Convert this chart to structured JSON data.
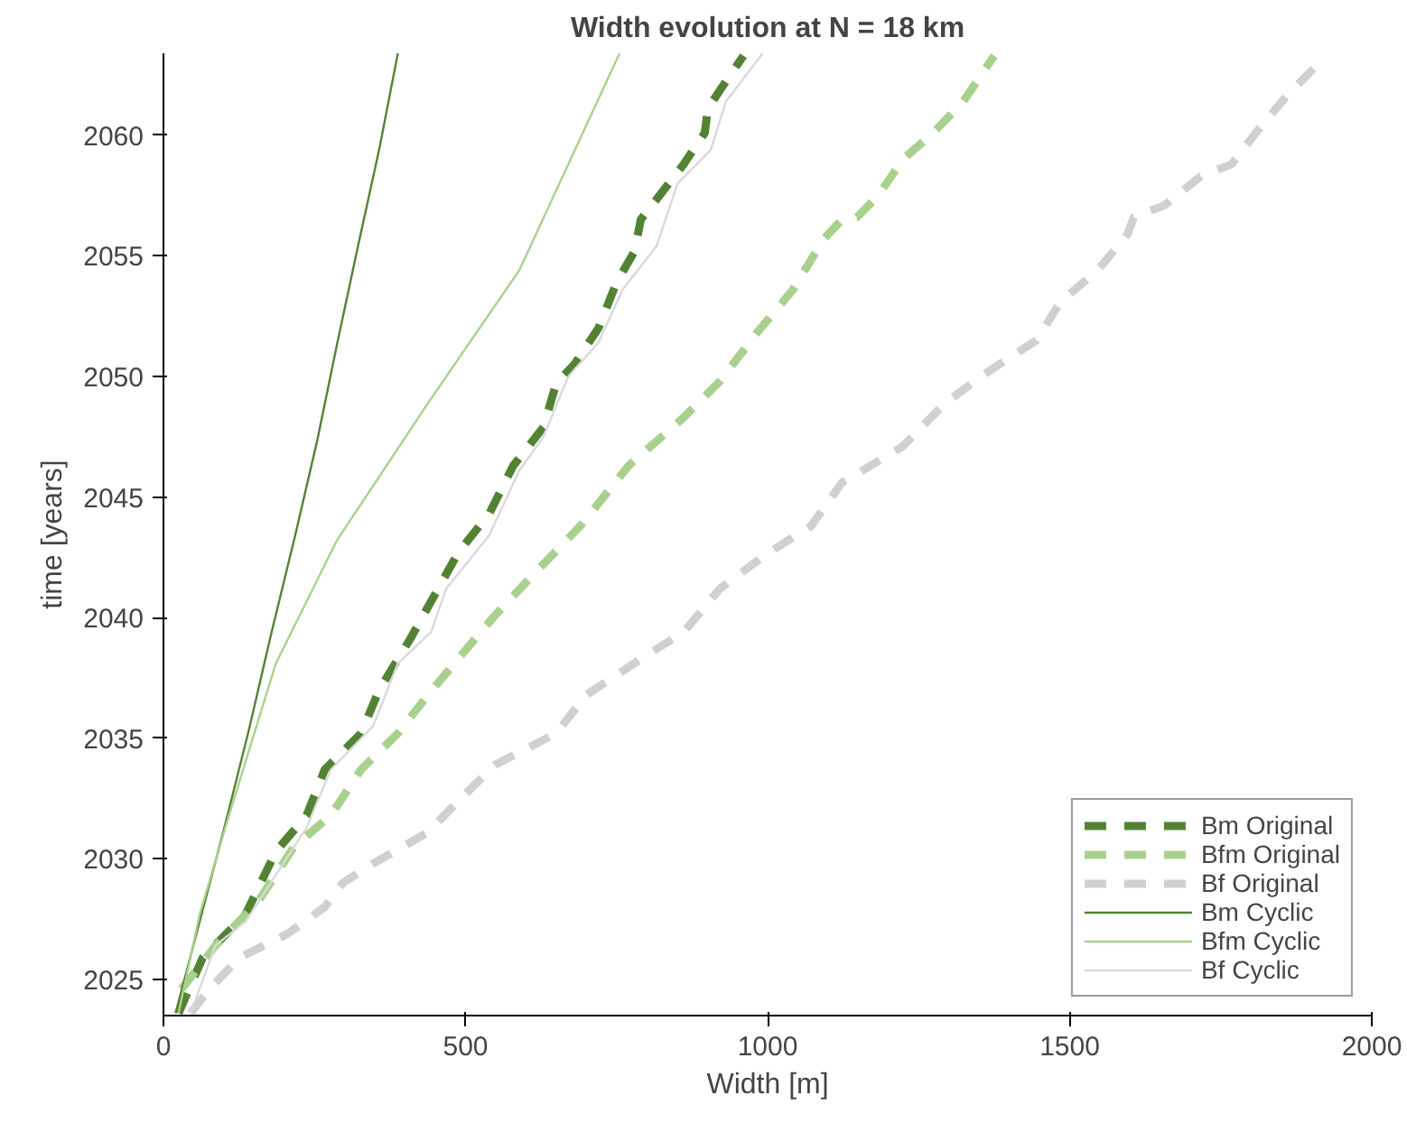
{
  "chart_data": {
    "type": "line",
    "title": "Width evolution at N = 18 km",
    "xlabel": "Width [m]",
    "ylabel": "time [years]",
    "xlim": [
      0,
      2000
    ],
    "xticks": [
      0,
      500,
      1000,
      1500,
      2000
    ],
    "ylim": [
      2023.5,
      2063.4
    ],
    "yticks": [
      2025,
      2030,
      2035,
      2040,
      2045,
      2050,
      2055,
      2060
    ],
    "grid": false,
    "legend": "bottom right",
    "series": [
      {
        "name": "Bm Original",
        "color": "#548235",
        "line_style": "dashed",
        "x": [
          25,
          65,
          136,
          186,
          237,
          267,
          327,
          357,
          408,
          448,
          488,
          539,
          579,
          629,
          650,
          680,
          720,
          750,
          780,
          790,
          821,
          861,
          896,
          901,
          922,
          960
        ],
        "values": [
          2023.6,
          2025.9,
          2027.7,
          2030.3,
          2031.8,
          2033.7,
          2035.2,
          2037.0,
          2039.1,
          2040.9,
          2042.7,
          2044.3,
          2046.3,
          2047.9,
          2049.7,
          2050.5,
          2052.0,
          2053.9,
          2055.2,
          2056.5,
          2057.5,
          2058.8,
          2060.1,
          2061.1,
          2061.9,
          2063.3
        ]
      },
      {
        "name": "Bfm Original",
        "color": "#a9d18e",
        "line_style": "dashed",
        "x": [
          30,
          86,
          156,
          216,
          277,
          327,
          388,
          438,
          488,
          549,
          609,
          690,
          770,
          861,
          921,
          982,
          1042,
          1093,
          1123,
          1148,
          1183,
          1224,
          1274,
          1324,
          1375
        ],
        "values": [
          2024.6,
          2026.4,
          2028.2,
          2030.5,
          2031.8,
          2033.7,
          2035.2,
          2036.8,
          2038.3,
          2040.1,
          2041.7,
          2043.8,
          2046.3,
          2048.3,
          2049.8,
          2051.8,
          2053.6,
          2055.7,
          2056.5,
          2056.6,
          2057.5,
          2059.0,
          2060.1,
          2061.4,
          2063.3
        ]
      },
      {
        "name": "Bf Original",
        "color": "#d0d0d0",
        "line_style": "dashed",
        "x": [
          45,
          76,
          126,
          206,
          267,
          297,
          347,
          438,
          488,
          549,
          650,
          700,
          791,
          861,
          921,
          1002,
          1072,
          1123,
          1224,
          1294,
          1365,
          1445,
          1485,
          1546,
          1596,
          1606,
          1657,
          1717,
          1768,
          1808,
          1858,
          1909,
          1914
        ],
        "values": [
          2023.6,
          2024.6,
          2025.9,
          2026.9,
          2028.0,
          2029.0,
          2029.8,
          2031.1,
          2032.4,
          2033.9,
          2035.2,
          2036.8,
          2038.3,
          2039.4,
          2041.2,
          2042.7,
          2043.8,
          2045.6,
          2047.1,
          2048.9,
          2050.2,
          2051.5,
          2053.1,
          2054.4,
          2055.9,
          2056.6,
          2057.1,
          2058.3,
          2058.8,
          2060.1,
          2061.6,
          2062.9,
          2063.4
        ]
      },
      {
        "name": "Bm Cyclic",
        "color": "#548235",
        "line_style": "solid",
        "x": [
          20,
          60,
          104,
          141,
          179,
          218,
          255,
          287,
          322,
          357,
          388
        ],
        "values": [
          2023.6,
          2027.4,
          2031.6,
          2035.3,
          2039.4,
          2043.4,
          2047.4,
          2051.3,
          2055.4,
          2059.4,
          2063.4
        ]
      },
      {
        "name": "Bfm Cyclic",
        "color": "#a9d18e",
        "line_style": "solid",
        "x": [
          25,
          60,
          106,
          186,
          287,
          438,
          589,
          755
        ],
        "values": [
          2023.6,
          2027.7,
          2031.6,
          2038.1,
          2043.2,
          2048.9,
          2054.4,
          2063.4
        ]
      },
      {
        "name": "Bf Cyclic",
        "color": "#d9d9d9",
        "line_style": "solid",
        "x": [
          45,
          86,
          136,
          237,
          277,
          347,
          388,
          443,
          468,
          539,
          589,
          629,
          670,
          720,
          760,
          816,
          851,
          906,
          931,
          992
        ],
        "values": [
          2023.6,
          2026.4,
          2027.4,
          2031.3,
          2033.7,
          2035.5,
          2038.1,
          2039.4,
          2041.2,
          2043.4,
          2046.1,
          2047.5,
          2050.0,
          2051.4,
          2053.6,
          2055.4,
          2058.0,
          2059.4,
          2061.4,
          2063.4
        ]
      }
    ]
  }
}
